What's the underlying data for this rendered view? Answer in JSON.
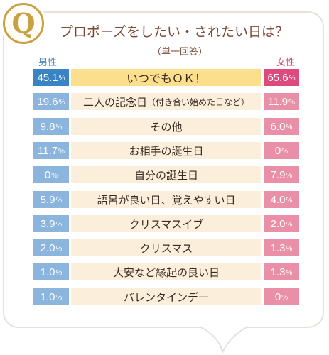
{
  "colors": {
    "male_top": "#3b84c3",
    "male": "#8bb5dd",
    "female_top": "#dd4a7d",
    "female": "#e98fa7",
    "label_top": "#fbdf8c",
    "label": "#fbeeda",
    "title": "#7a4a37",
    "badge": "#c8a046"
  },
  "badge_letter": "Q",
  "title": "プロポーズをしたい・されたい日は？",
  "subtitle": "（単一回答）",
  "legend": {
    "male": "男性",
    "female": "女性"
  },
  "chart_data": {
    "type": "bar",
    "title": "プロポーズをしたい・されたい日は？",
    "subtitle": "（単一回答）",
    "unit": "%",
    "categories": [
      "いつでもＯＫ！",
      "二人の記念日（付き合い始めた日など）",
      "その他",
      "お相手の誕生日",
      "自分の誕生日",
      "語呂が良い日、覚えやすい日",
      "クリスマスイブ",
      "クリスマス",
      "大安など縁起の良い日",
      "バレンタインデー"
    ],
    "series": [
      {
        "name": "男性",
        "values": [
          "45.1",
          "19.6",
          "9.8",
          "11.7",
          "0",
          "5.9",
          "3.9",
          "2.0",
          "1.0",
          "1.0"
        ]
      },
      {
        "name": "女性",
        "values": [
          "65.6",
          "11.9",
          "6.0",
          "0",
          "7.9",
          "4.0",
          "2.0",
          "1.3",
          "1.3",
          "0"
        ]
      }
    ]
  }
}
